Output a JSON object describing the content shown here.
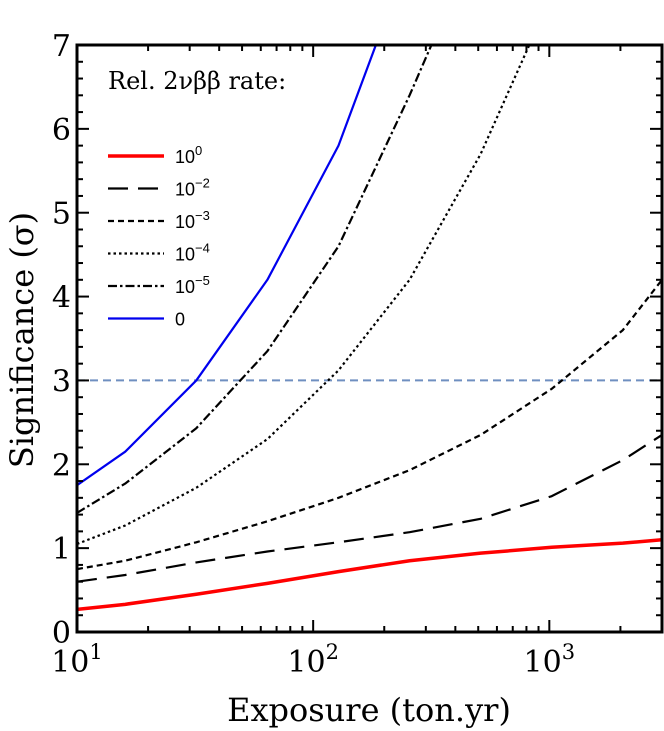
{
  "chart_data": {
    "type": "line",
    "title": "",
    "xlabel": "Exposure (ton.yr)",
    "ylabel": "Significance (σ)",
    "xscale": "log",
    "xlim": [
      10,
      3000
    ],
    "ylim": [
      0,
      7
    ],
    "x_ticks": [
      {
        "value": 10,
        "base": "10",
        "exp": "1"
      },
      {
        "value": 100,
        "base": "10",
        "exp": "2"
      },
      {
        "value": 1000,
        "base": "10",
        "exp": "3"
      }
    ],
    "y_ticks": [
      "0",
      "1",
      "2",
      "3",
      "4",
      "5",
      "6",
      "7"
    ],
    "legend": {
      "title": "Rel. 2νββ rate:",
      "placement": "top-left"
    },
    "threshold": {
      "y": 3,
      "color": "#6f8fc0",
      "style": "dashed"
    },
    "series": [
      {
        "name": "10^0",
        "label_base": "10",
        "label_exp": "0",
        "color": "#ff0000",
        "dash": "solid",
        "x": [
          10,
          16,
          32,
          64,
          128,
          256,
          512,
          1024,
          2048,
          3000
        ],
        "y": [
          0.27,
          0.33,
          0.45,
          0.58,
          0.72,
          0.85,
          0.94,
          1.01,
          1.06,
          1.1
        ]
      },
      {
        "name": "10^-2",
        "label_base": "10",
        "label_exp": "−2",
        "color": "#000000",
        "dash": "long",
        "x": [
          10,
          16,
          32,
          64,
          128,
          256,
          512,
          1024,
          2048,
          3000
        ],
        "y": [
          0.6,
          0.68,
          0.83,
          0.96,
          1.07,
          1.19,
          1.35,
          1.62,
          2.05,
          2.35
        ]
      },
      {
        "name": "10^-3",
        "label_base": "10",
        "label_exp": "−3",
        "color": "#000000",
        "dash": "short",
        "x": [
          10,
          16,
          32,
          64,
          128,
          256,
          512,
          1024,
          2048,
          3000
        ],
        "y": [
          0.75,
          0.85,
          1.07,
          1.32,
          1.6,
          1.93,
          2.35,
          2.9,
          3.6,
          4.2
        ]
      },
      {
        "name": "10^-4",
        "label_base": "10",
        "label_exp": "−4",
        "color": "#000000",
        "dash": "dotted",
        "x": [
          10,
          16,
          32,
          64,
          128,
          256,
          512,
          1024
        ],
        "y": [
          1.05,
          1.27,
          1.72,
          2.3,
          3.12,
          4.2,
          5.7,
          7.6
        ]
      },
      {
        "name": "10^-5",
        "label_base": "10",
        "label_exp": "−5",
        "color": "#000000",
        "dash": "dashdot",
        "x": [
          10,
          16,
          32,
          64,
          128,
          256,
          340
        ],
        "y": [
          1.42,
          1.77,
          2.43,
          3.35,
          4.6,
          6.4,
          7.2
        ]
      },
      {
        "name": "0",
        "label_base": "0",
        "label_exp": "",
        "color": "#0000ee",
        "dash": "solid",
        "x": [
          10,
          16,
          32,
          64,
          128,
          190
        ],
        "y": [
          1.75,
          2.15,
          3.0,
          4.2,
          5.8,
          7.1
        ]
      }
    ]
  }
}
